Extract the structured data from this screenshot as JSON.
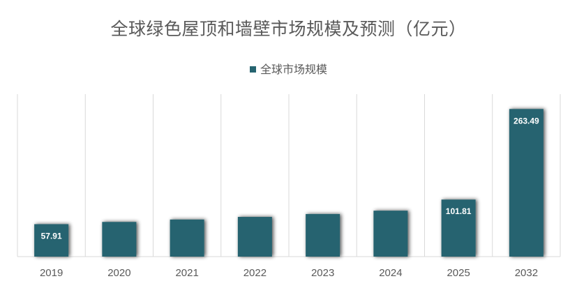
{
  "chart_data": {
    "type": "bar",
    "title": "全球绿色屋顶和墙壁市场规模及预测（亿元）",
    "legend_position": "top",
    "grid": "vertical",
    "categories": [
      "2019",
      "2020",
      "2021",
      "2022",
      "2023",
      "2024",
      "2025",
      "2032"
    ],
    "series": [
      {
        "name": "全球市场规模",
        "color": "#266470",
        "values": [
          57.91,
          61.9,
          66.2,
          70.9,
          76.0,
          82.0,
          101.81,
          263.49
        ]
      }
    ],
    "data_labels": [
      "57.91",
      "",
      "",
      "",
      "",
      "",
      "101.81",
      "263.49"
    ],
    "ylim": [
      0,
      290
    ]
  }
}
